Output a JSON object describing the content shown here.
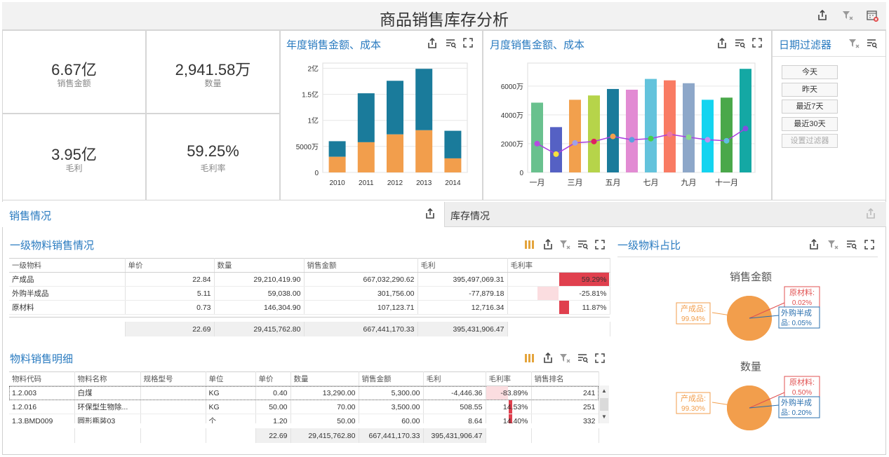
{
  "header": {
    "title": "商品销售库存分析"
  },
  "kpis": [
    {
      "value": "6.67亿",
      "label": "销售金额"
    },
    {
      "value": "2,941.58万",
      "label": "数量"
    },
    {
      "value": "3.95亿",
      "label": "毛利"
    },
    {
      "value": "59.25%",
      "label": "毛利率"
    }
  ],
  "yearly": {
    "title": "年度销售金额、成本"
  },
  "monthly": {
    "title": "月度销售金额、成本"
  },
  "date_filter": {
    "title": "日期过滤器",
    "buttons": [
      "今天",
      "昨天",
      "最近7天",
      "最近30天"
    ],
    "disabled_button": "设置过滤器"
  },
  "tabs": {
    "sales": "销售情况",
    "inventory": "库存情况"
  },
  "level1": {
    "title": "一级物料销售情况",
    "columns": [
      "一级物料",
      "单价",
      "数量",
      "销售金额",
      "毛利",
      "毛利率"
    ],
    "rows": [
      {
        "name": "产成品",
        "price": "22.84",
        "qty": "29,210,419.90",
        "amount": "667,032,290.62",
        "profit": "395,497,069.31",
        "rate": "59.29%",
        "rate_value": 59.29
      },
      {
        "name": "外购半成品",
        "price": "5.11",
        "qty": "59,038.00",
        "amount": "301,756.00",
        "profit": "-77,879.18",
        "rate": "-25.81%",
        "rate_value": -25.81
      },
      {
        "name": "原材料",
        "price": "0.73",
        "qty": "146,304.90",
        "amount": "107,123.71",
        "profit": "12,716.34",
        "rate": "11.87%",
        "rate_value": 11.87
      }
    ],
    "totals": {
      "price": "22.69",
      "qty": "29,415,762.80",
      "amount": "667,441,170.33",
      "profit": "395,431,906.47"
    }
  },
  "detail": {
    "title": "物料销售明细",
    "columns": [
      "物料代码",
      "物料名称",
      "规格型号",
      "单位",
      "单价",
      "数量",
      "销售金额",
      "毛利",
      "毛利率",
      "销售排名"
    ],
    "rows": [
      {
        "code": "1.2.003",
        "name": "白煤",
        "spec": "",
        "unit": "KG",
        "price": "0.40",
        "qty": "13,290.00",
        "amount": "5,300.00",
        "profit": "-4,446.36",
        "rate": "-83.89%",
        "rate_value": -83.89,
        "rank": "241"
      },
      {
        "code": "1.2.016",
        "name": "环保型生物除...",
        "spec": "",
        "unit": "KG",
        "price": "50.00",
        "qty": "70.00",
        "amount": "3,500.00",
        "profit": "508.55",
        "rate": "14.53%",
        "rate_value": 14.53,
        "rank": "251"
      },
      {
        "code": "1.3.BMD009",
        "name": "圆形瓶装03",
        "spec": "",
        "unit": "个",
        "price": "1.20",
        "qty": "50.00",
        "amount": "60.00",
        "profit": "8.64",
        "rate": "14.40%",
        "rate_value": 14.4,
        "rank": "332"
      }
    ],
    "totals": {
      "price": "22.69",
      "qty": "29,415,762.80",
      "amount": "667,441,170.33",
      "profit": "395,431,906.47"
    }
  },
  "pie_panel": {
    "title": "一级物料占比"
  },
  "chart_data": [
    {
      "type": "bar",
      "title": "年度销售金额、成本",
      "categories": [
        "2010",
        "2011",
        "2012",
        "2013",
        "2014"
      ],
      "series": [
        {
          "values": [
            0.3,
            0.58,
            0.73,
            0.81,
            0.27
          ]
        },
        {
          "values": [
            0.6,
            1.52,
            1.76,
            1.99,
            0.8
          ]
        }
      ],
      "ytick_labels": [
        "0",
        "5000万",
        "1亿",
        "1.5亿",
        "2亿"
      ],
      "ylim": [
        0,
        2.1
      ],
      "unit": "亿",
      "colors": [
        "#f29e4c",
        "#1a7b9b"
      ],
      "grid": true
    },
    {
      "type": "bar",
      "title": "月度销售金额、成本",
      "categories": [
        "一月",
        "二月",
        "三月",
        "四月",
        "五月",
        "六月",
        "七月",
        "八月",
        "九月",
        "十月",
        "十一月",
        "十二月"
      ],
      "xtick_labels": [
        "一月",
        "",
        "三月",
        "",
        "五月",
        "",
        "七月",
        "",
        "九月",
        "",
        "十一月",
        ""
      ],
      "values": [
        4850,
        3150,
        5050,
        5350,
        5800,
        5750,
        6500,
        6400,
        6200,
        5050,
        5200,
        7200
      ],
      "line_values": [
        2000,
        1270,
        2050,
        2150,
        2500,
        2270,
        2350,
        2650,
        2450,
        2270,
        2200,
        3050
      ],
      "bar_colors": [
        "#69c18e",
        "#5561c4",
        "#f2a04d",
        "#b6d44a",
        "#1a7b9b",
        "#e28bd3",
        "#63c3dc",
        "#f97b63",
        "#8da7c9",
        "#13d4f0",
        "#4aa84a",
        "#14a8a4"
      ],
      "point_colors": [
        "#b44be1",
        "#f7e03e",
        "#a0a0e8",
        "#e02060",
        "#f2a04d",
        "#5aa0e0",
        "#46d046",
        "#f075a0",
        "#8adb8a",
        "#c090f0",
        "#60c0e0",
        "#8050e0"
      ],
      "ytick_labels": [
        "0",
        "2000万",
        "4000万",
        "6000万"
      ],
      "ylim": [
        0,
        7600
      ],
      "unit": "万",
      "line_color": "#a83ee0",
      "grid": true
    },
    {
      "type": "pie",
      "title": "销售金额",
      "labels": [
        "产成品",
        "原材料",
        "外购半成品"
      ],
      "percent_labels": [
        "99.94%",
        "0.02%",
        "0.05%"
      ],
      "values": [
        99.94,
        0.02,
        0.05
      ],
      "colors": [
        "#f29e4c",
        "#e05050",
        "#2a6fae"
      ]
    },
    {
      "type": "pie",
      "title": "数量",
      "labels": [
        "产成品",
        "原材料",
        "外购半成品"
      ],
      "percent_labels": [
        "99.30%",
        "0.50%",
        "0.20%"
      ],
      "values": [
        99.3,
        0.5,
        0.2
      ],
      "colors": [
        "#f29e4c",
        "#e05050",
        "#2a6fae"
      ]
    }
  ]
}
